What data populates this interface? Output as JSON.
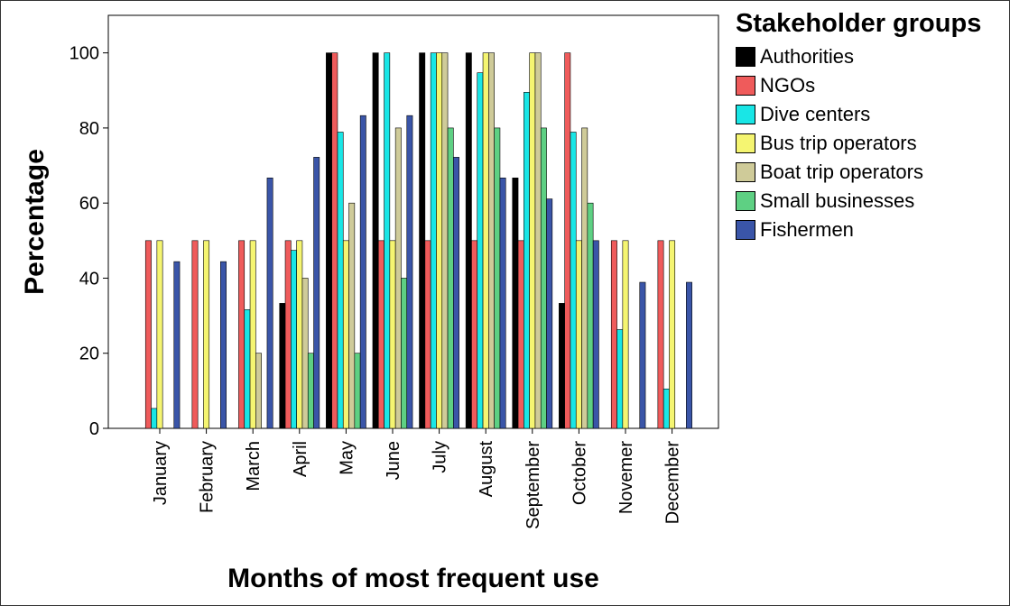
{
  "chart_data": {
    "type": "bar",
    "xlabel": "Months of most frequent use",
    "ylabel": "Percentage",
    "ylim": [
      0,
      110
    ],
    "yticks": [
      0,
      20,
      40,
      60,
      80,
      100
    ],
    "grid": false,
    "legend_title": "Stakeholder groups",
    "legend_position": "right",
    "categories": [
      "January",
      "February",
      "March",
      "April",
      "May",
      "June",
      "July",
      "August",
      "September",
      "October",
      "Novemer",
      "December"
    ],
    "series": [
      {
        "name": "Authorities",
        "color": "#000000",
        "values": [
          0,
          0,
          0,
          33.3,
          100,
          100,
          100,
          100,
          66.7,
          33.3,
          0,
          0
        ]
      },
      {
        "name": "NGOs",
        "color": "#ef5b5b",
        "values": [
          50,
          50,
          50,
          50,
          100,
          50,
          50,
          50,
          50,
          100,
          50,
          50
        ]
      },
      {
        "name": "Dive centers",
        "color": "#19e6e6",
        "values": [
          5.3,
          0,
          31.6,
          47.4,
          78.9,
          100,
          100,
          94.7,
          89.5,
          78.9,
          26.3,
          10.5
        ]
      },
      {
        "name": "Bus trip operators",
        "color": "#f5f571",
        "values": [
          50,
          50,
          50,
          50,
          50,
          50,
          100,
          100,
          100,
          50,
          50,
          50
        ]
      },
      {
        "name": "Boat trip operators",
        "color": "#cfcb99",
        "values": [
          0,
          0,
          20,
          40,
          60,
          80,
          100,
          100,
          100,
          80,
          0,
          0
        ]
      },
      {
        "name": "Small businesses",
        "color": "#5ed083",
        "values": [
          0,
          0,
          0,
          20,
          20,
          40,
          80,
          80,
          80,
          60,
          0,
          0
        ]
      },
      {
        "name": "Fishermen",
        "color": "#3a55a8",
        "values": [
          44.4,
          44.4,
          66.7,
          72.2,
          83.3,
          83.3,
          72.2,
          66.7,
          61.1,
          50,
          38.9,
          38.9
        ]
      }
    ]
  }
}
